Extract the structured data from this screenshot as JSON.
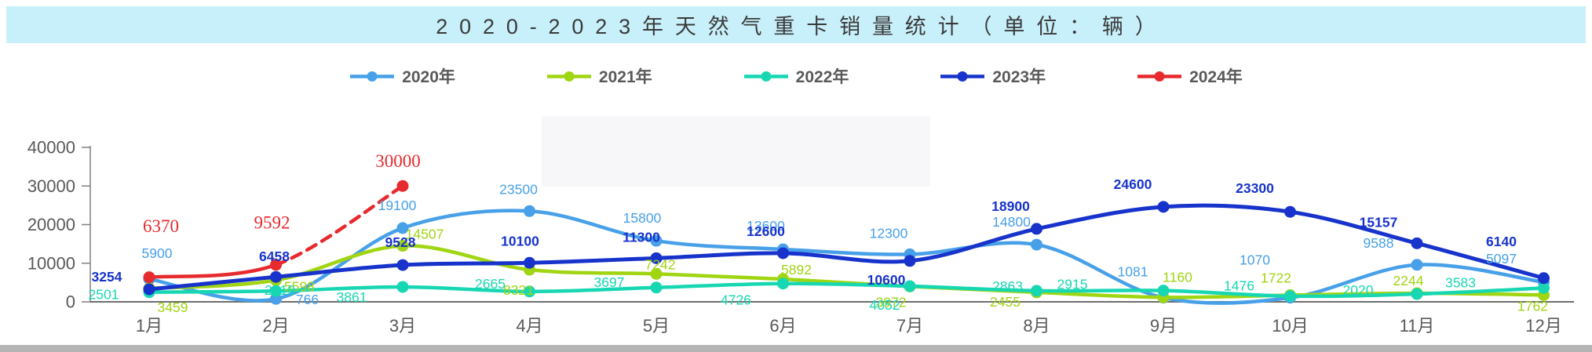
{
  "title": "2020-2023年天然气重卡销量统计（单位：辆）",
  "colors": {
    "title_bar_bg": "#c8f0fb",
    "title_text": "#3a3a3a",
    "axis": "#808080",
    "axis_text": "#595959",
    "bottom_bar": "#b5b5b5",
    "watermark_patch": "#f7f7f9"
  },
  "chart_data": {
    "type": "line",
    "title": "2020-2023年天然气重卡销量统计（单位：辆）",
    "xlabel": "",
    "ylabel": "",
    "ylim": [
      0,
      40000
    ],
    "y_ticks": [
      "0",
      "10000",
      "20000",
      "30000",
      "40000"
    ],
    "y_tick_values": [
      0,
      10000,
      20000,
      30000,
      40000
    ],
    "grid": false,
    "legend_position": "top",
    "categories": [
      "1月",
      "2月",
      "3月",
      "4月",
      "5月",
      "6月",
      "7月",
      "8月",
      "9月",
      "10月",
      "11月",
      "12月"
    ],
    "series": [
      {
        "name": "2020年",
        "color": "#47a0e8",
        "dash_from_index": null,
        "values": [
          5900,
          766,
          19100,
          23500,
          15800,
          13600,
          12300,
          14800,
          1081,
          1070,
          9588,
          5097
        ],
        "label_offsets": [
          [
            10,
            -33
          ],
          [
            40,
            1
          ],
          [
            -7,
            -29
          ],
          [
            -14,
            -28
          ],
          [
            -18,
            -29
          ],
          [
            -22,
            -30
          ],
          [
            -27,
            -27
          ],
          [
            -32,
            -29
          ],
          [
            -39,
            -33
          ],
          [
            -45,
            -48
          ],
          [
            -49,
            -28
          ],
          [
            -54,
            -30
          ]
        ]
      },
      {
        "name": "2021年",
        "color": "#a0d511",
        "dash_from_index": null,
        "values": [
          3459,
          5598,
          14507,
          8321,
          7242,
          5892,
          3972,
          2455,
          1160,
          1722,
          2244,
          1762
        ],
        "label_offsets": [
          [
            30,
            24
          ],
          [
            30,
            8
          ],
          [
            28,
            -15
          ],
          [
            -14,
            26
          ],
          [
            5,
            -12
          ],
          [
            17,
            -12
          ],
          [
            -24,
            20
          ],
          [
            -40,
            12
          ],
          [
            18,
            -26
          ],
          [
            -18,
            -22
          ],
          [
            -11,
            -16
          ],
          [
            -14,
            14
          ]
        ]
      },
      {
        "name": "2022年",
        "color": "#17d7b3",
        "dash_from_index": null,
        "values": [
          2501,
          2819,
          3861,
          2665,
          3697,
          4726,
          4052,
          2863,
          2915,
          1476,
          2020,
          3583
        ],
        "label_offsets": [
          [
            -58,
            3
          ],
          [
            5,
            -1
          ],
          [
            -65,
            13
          ],
          [
            -50,
            -10
          ],
          [
            -60,
            -7
          ],
          [
            -60,
            21
          ],
          [
            -32,
            24
          ],
          [
            -37,
            -6
          ],
          [
            -116,
            -8
          ],
          [
            -65,
            -13
          ],
          [
            -75,
            -5
          ],
          [
            -106,
            -7
          ]
        ]
      },
      {
        "name": "2023年",
        "color": "#1733cb",
        "dash_from_index": null,
        "values": [
          3254,
          6458,
          9528,
          10100,
          11300,
          12600,
          10600,
          18900,
          24600,
          23300,
          15157,
          6140
        ],
        "label_offsets": [
          [
            -54,
            -16
          ],
          [
            -2,
            -26
          ],
          [
            -3,
            -29
          ],
          [
            -12,
            -28
          ],
          [
            -19,
            -27
          ],
          [
            -22,
            -28
          ],
          [
            -30,
            24
          ],
          [
            -33,
            -29
          ],
          [
            -39,
            -29
          ],
          [
            -45,
            -30
          ],
          [
            -49,
            -27
          ],
          [
            -54,
            -47
          ]
        ]
      },
      {
        "name": "2024年",
        "color": "#e72a2d",
        "dash_from_index": 1,
        "values": [
          6370,
          9592,
          30000,
          null,
          null,
          null,
          null,
          null,
          null,
          null,
          null,
          null
        ],
        "label_offsets": [
          [
            15,
            -65
          ],
          [
            -5,
            -54
          ],
          [
            -6,
            -32
          ]
        ]
      }
    ]
  }
}
